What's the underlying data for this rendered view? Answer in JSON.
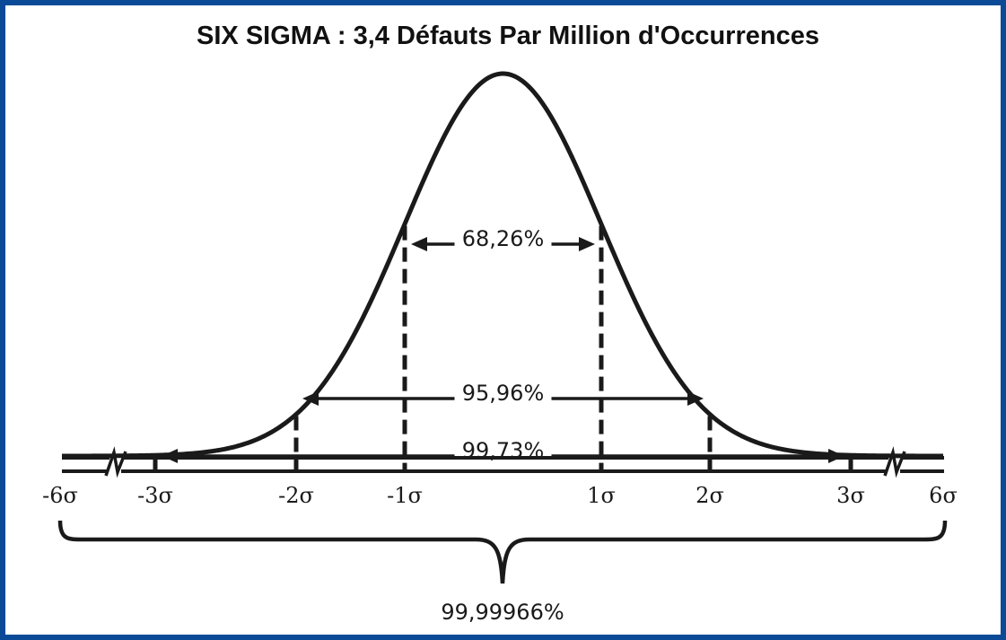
{
  "title": "SIX SIGMA : 3,4 Défauts Par Million d'Occurrences",
  "intervals": [
    {
      "label": "68,26%",
      "from": -1,
      "to": 1
    },
    {
      "label": "95,96%",
      "from": -2,
      "to": 2
    },
    {
      "label": "99,73%",
      "from": -3,
      "to": 3
    }
  ],
  "axis_labels": [
    {
      "sigma": -6,
      "text": "-6σ"
    },
    {
      "sigma": -3,
      "text": "-3σ"
    },
    {
      "sigma": -2,
      "text": "-2σ"
    },
    {
      "sigma": -1,
      "text": "-1σ"
    },
    {
      "sigma": 1,
      "text": "1σ"
    },
    {
      "sigma": 2,
      "text": "2σ"
    },
    {
      "sigma": 3,
      "text": "3σ"
    },
    {
      "sigma": 6,
      "text": "6σ"
    }
  ],
  "total": {
    "label": "99,99966%",
    "from": -6,
    "to": 6
  },
  "colors": {
    "frame": "#0b4a96",
    "ink": "#1a1a1a",
    "background": "#ffffff"
  }
}
